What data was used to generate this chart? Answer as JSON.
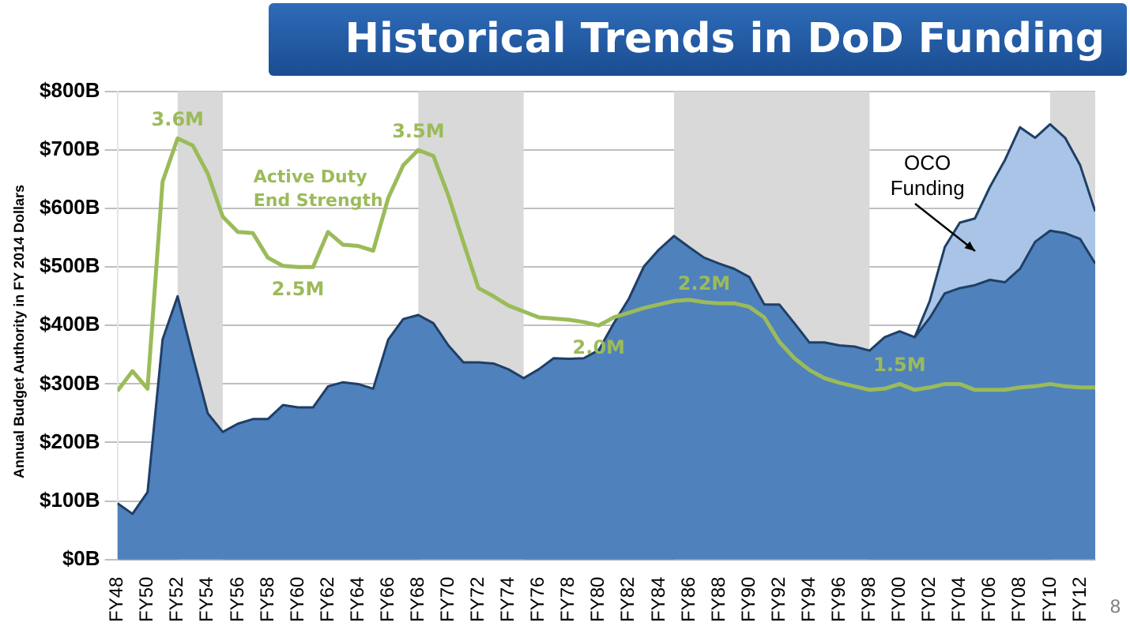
{
  "chart_data": {
    "type": "area",
    "title": "Historical Trends in DoD Funding",
    "ylabel": "Annual Budget Authority in FY 2014 Dollars",
    "x": [
      "1948",
      "1949",
      "1950",
      "1951",
      "1952",
      "1953",
      "1954",
      "1955",
      "1956",
      "1957",
      "1958",
      "1959",
      "1960",
      "1961",
      "1962",
      "1963",
      "1964",
      "1965",
      "1966",
      "1967",
      "1968",
      "1969",
      "1970",
      "1971",
      "1972",
      "1973",
      "1974",
      "1975",
      "1976",
      "1977",
      "1978",
      "1979",
      "1980",
      "1981",
      "1982",
      "1983",
      "1984",
      "1985",
      "1986",
      "1987",
      "1988",
      "1989",
      "1990",
      "1991",
      "1992",
      "1993",
      "1994",
      "1995",
      "1996",
      "1997",
      "1998",
      "1999",
      "2000",
      "2001",
      "2002",
      "2003",
      "2004",
      "2005",
      "2006",
      "2007",
      "2008",
      "2009",
      "2010",
      "2011",
      "2012",
      "2013"
    ],
    "xlim": [
      "1948",
      "2013"
    ],
    "xticks": [
      {
        "value": "1948",
        "label": "FY48"
      },
      {
        "value": "1950",
        "label": "FY50"
      },
      {
        "value": "1952",
        "label": "FY52"
      },
      {
        "value": "1954",
        "label": "FY54"
      },
      {
        "value": "1956",
        "label": "FY56"
      },
      {
        "value": "1958",
        "label": "FY58"
      },
      {
        "value": "1960",
        "label": "FY60"
      },
      {
        "value": "1962",
        "label": "FY62"
      },
      {
        "value": "1964",
        "label": "FY64"
      },
      {
        "value": "1966",
        "label": "FY66"
      },
      {
        "value": "1968",
        "label": "FY68"
      },
      {
        "value": "1970",
        "label": "FY70"
      },
      {
        "value": "1972",
        "label": "FY72"
      },
      {
        "value": "1974",
        "label": "FY74"
      },
      {
        "value": "1976",
        "label": "FY76"
      },
      {
        "value": "1978",
        "label": "FY78"
      },
      {
        "value": "1980",
        "label": "FY80"
      },
      {
        "value": "1982",
        "label": "FY82"
      },
      {
        "value": "1984",
        "label": "FY84"
      },
      {
        "value": "1986",
        "label": "FY86"
      },
      {
        "value": "1988",
        "label": "FY88"
      },
      {
        "value": "1990",
        "label": "FY90"
      },
      {
        "value": "1992",
        "label": "FY92"
      },
      {
        "value": "1994",
        "label": "FY94"
      },
      {
        "value": "1996",
        "label": "FY96"
      },
      {
        "value": "1998",
        "label": "FY98"
      },
      {
        "value": "2000",
        "label": "FY00"
      },
      {
        "value": "2002",
        "label": "FY02"
      },
      {
        "value": "2004",
        "label": "FY04"
      },
      {
        "value": "2006",
        "label": "FY06"
      },
      {
        "value": "2008",
        "label": "FY08"
      },
      {
        "value": "2010",
        "label": "FY10"
      },
      {
        "value": "2012",
        "label": "FY12"
      }
    ],
    "stacked": true,
    "series": [
      {
        "color": "#4f81bd",
        "values": [
          96,
          78,
          115,
          376,
          450,
          348,
          250,
          218,
          232,
          240,
          240,
          264,
          260,
          260,
          296,
          303,
          300,
          292,
          376,
          411,
          418,
          404,
          366,
          337,
          337,
          335,
          325,
          310,
          325,
          344,
          343,
          344,
          358,
          404,
          446,
          501,
          530,
          553,
          534,
          516,
          506,
          497,
          483,
          436,
          436,
          404,
          371,
          371,
          366,
          364,
          357,
          380,
          390,
          380,
          413,
          455,
          464,
          469,
          478,
          474,
          497,
          543,
          562,
          558,
          548,
          506
        ]
      },
      {
        "name": "OCO Funding",
        "color": "#a9c4e6",
        "values": [
          null,
          null,
          null,
          null,
          null,
          null,
          null,
          null,
          null,
          null,
          null,
          null,
          null,
          null,
          null,
          null,
          null,
          null,
          null,
          null,
          null,
          null,
          null,
          null,
          null,
          null,
          null,
          null,
          null,
          null,
          null,
          null,
          null,
          null,
          null,
          null,
          null,
          null,
          null,
          null,
          null,
          null,
          null,
          null,
          null,
          null,
          null,
          null,
          null,
          null,
          null,
          null,
          null,
          0,
          29,
          79,
          112,
          114,
          159,
          209,
          242,
          178,
          182,
          163,
          126,
          89
        ]
      },
      {
        "type": "line",
        "axis": "y2",
        "name": "Active Duty End Strength",
        "color": "#9bbb59",
        "values": [
          1.44,
          1.61,
          1.46,
          3.23,
          3.6,
          3.54,
          3.3,
          2.93,
          2.8,
          2.79,
          2.58,
          2.51,
          2.5,
          2.5,
          2.8,
          2.69,
          2.68,
          2.64,
          3.09,
          3.37,
          3.5,
          3.45,
          3.11,
          2.71,
          2.32,
          2.25,
          2.17,
          2.12,
          2.07,
          2.06,
          2.05,
          2.03,
          2.0,
          2.07,
          2.11,
          2.15,
          2.18,
          2.21,
          2.22,
          2.2,
          2.19,
          2.19,
          2.16,
          2.07,
          1.86,
          1.72,
          1.62,
          1.55,
          1.51,
          1.48,
          1.45,
          1.46,
          1.5,
          1.45,
          1.47,
          1.5,
          1.5,
          1.45,
          1.45,
          1.45,
          1.47,
          1.48,
          1.5,
          1.48,
          1.47,
          1.47
        ],
        "value_labels": [
          null,
          null,
          null,
          null,
          "3.6M",
          null,
          null,
          null,
          null,
          null,
          null,
          null,
          "2.5M",
          null,
          null,
          null,
          null,
          null,
          null,
          null,
          "3.5M",
          null,
          null,
          null,
          null,
          null,
          null,
          null,
          null,
          null,
          null,
          null,
          "2.0M",
          null,
          null,
          null,
          null,
          null,
          null,
          "2.2M",
          null,
          null,
          null,
          null,
          null,
          null,
          null,
          null,
          null,
          null,
          null,
          null,
          "1.5M",
          null,
          null,
          null,
          null,
          null,
          null,
          null,
          null,
          null,
          null,
          null,
          null,
          null
        ]
      }
    ],
    "ylim": [
      0,
      800
    ],
    "yticks": [
      {
        "value": 0,
        "label": "$0B"
      },
      {
        "value": 100,
        "label": "$100B"
      },
      {
        "value": 200,
        "label": "$200B"
      },
      {
        "value": 300,
        "label": "$300B"
      },
      {
        "value": 400,
        "label": "$400B"
      },
      {
        "value": 500,
        "label": "$500B"
      },
      {
        "value": 600,
        "label": "$600B"
      },
      {
        "value": 700,
        "label": "$700B"
      },
      {
        "value": 800,
        "label": "$800B"
      }
    ],
    "y2lim": [
      0,
      4
    ],
    "grid": "y",
    "legend": false,
    "bands": [
      {
        "axis": "x",
        "from": "1952",
        "to": "1955",
        "color": "#d9d9d9"
      },
      {
        "axis": "x",
        "from": "1968",
        "to": "1975",
        "color": "#d9d9d9"
      },
      {
        "axis": "x",
        "from": "1985",
        "to": "1998",
        "color": "#d9d9d9"
      },
      {
        "axis": "x",
        "from": "2010",
        "to": "2013",
        "color": "#d9d9d9"
      }
    ],
    "annotations": [
      "8"
    ]
  }
}
